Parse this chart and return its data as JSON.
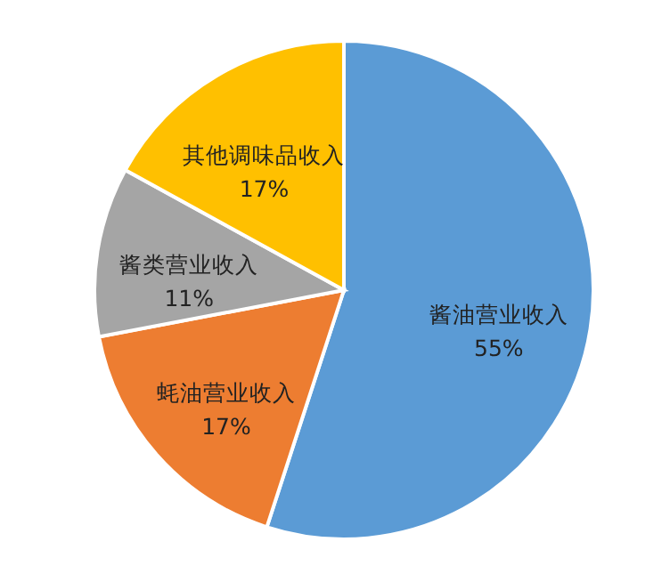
{
  "chart_data": {
    "type": "pie",
    "categories": [
      "酱油营业收入",
      "蚝油营业收入",
      "酱类营业收入",
      "其他调味品收入"
    ],
    "values": [
      55,
      17,
      11,
      17
    ],
    "colors": [
      "#5b9bd5",
      "#ed7d31",
      "#a5a5a5",
      "#ffc000"
    ],
    "value_labels": [
      "55%",
      "17%",
      "11%",
      "17%"
    ]
  }
}
